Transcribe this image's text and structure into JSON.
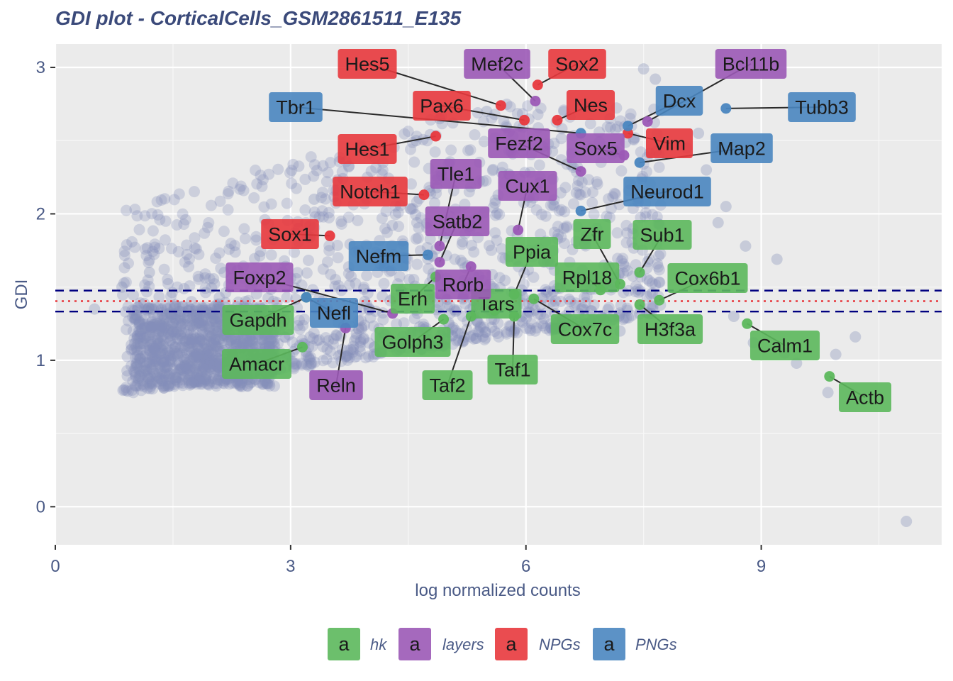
{
  "chart_data": {
    "type": "scatter",
    "title": "GDI plot - CorticalCells_GSM2861511_E135",
    "xlabel": "log normalized counts",
    "ylabel": "GDI",
    "xlim": [
      0,
      11.3
    ],
    "ylim": [
      -0.26,
      3.16
    ],
    "x_ticks": [
      0,
      3,
      6,
      9
    ],
    "y_ticks": [
      0,
      1,
      2,
      3
    ],
    "x_tick_labels": [
      "0",
      "3",
      "6",
      "9"
    ],
    "y_tick_labels": [
      "0",
      "1",
      "2",
      "3"
    ],
    "grid": true,
    "legend_position": "bottom",
    "reference_lines": [
      {
        "y": 1.476,
        "style": "dashed",
        "color": "#000080"
      },
      {
        "y": 1.404,
        "style": "dotted",
        "color": "#e8383d"
      },
      {
        "y": 1.333,
        "style": "dashed",
        "color": "#000080"
      }
    ],
    "background_points": [
      [
        10.85,
        -0.1
      ],
      [
        9.85,
        0.78
      ],
      [
        9.45,
        0.98
      ],
      [
        9.3,
        1.05
      ],
      [
        9.95,
        1.04
      ],
      [
        10.2,
        1.16
      ],
      [
        8.65,
        1.3
      ],
      [
        8.9,
        1.12
      ],
      [
        9.2,
        1.69
      ],
      [
        8.8,
        1.78
      ],
      [
        8.55,
        2.05
      ],
      [
        8.45,
        1.94
      ],
      [
        8.2,
        2.55
      ],
      [
        8.5,
        2.45
      ],
      [
        8.3,
        2.3
      ],
      [
        7.5,
        2.99
      ],
      [
        7.65,
        2.92
      ],
      [
        8.05,
        2.45
      ],
      [
        0.5,
        1.35
      ],
      [
        0.85,
        1.5
      ],
      [
        1.2,
        1.6
      ],
      [
        2.5,
        0.85
      ],
      [
        2.8,
        1.0
      ],
      [
        3.1,
        1.9
      ],
      [
        3.3,
        2.1
      ],
      [
        4.6,
        2.5
      ],
      [
        4.9,
        2.65
      ],
      [
        5.5,
        2.7
      ],
      [
        7.2,
        1.2
      ],
      [
        7.8,
        1.25
      ]
    ],
    "categories": [
      "hk",
      "layers",
      "NPGs",
      "PNGs"
    ],
    "colors": {
      "hk": "#5cb85c",
      "layers": "#9b59b6",
      "NPGs": "#e8383d",
      "PNGs": "#4a86c0",
      "background": "#8490b8"
    },
    "series": [
      {
        "name": "hk",
        "points": [
          {
            "label": "Actb",
            "x": 9.87,
            "y": 0.89
          },
          {
            "label": "Calm1",
            "x": 8.82,
            "y": 1.25
          },
          {
            "label": "Cox6b1",
            "x": 7.7,
            "y": 1.41
          },
          {
            "label": "H3f3a",
            "x": 7.45,
            "y": 1.38
          },
          {
            "label": "Sub1",
            "x": 7.45,
            "y": 1.6
          },
          {
            "label": "Zfr",
            "x": 7.2,
            "y": 1.52
          },
          {
            "label": "Rpl18",
            "x": 6.95,
            "y": 1.48
          },
          {
            "label": "Cox7c",
            "x": 6.1,
            "y": 1.42
          },
          {
            "label": "Ppia",
            "x": 5.85,
            "y": 1.45
          },
          {
            "label": "Tars",
            "x": 5.6,
            "y": 1.34
          },
          {
            "label": "Taf1",
            "x": 5.85,
            "y": 1.3
          },
          {
            "label": "Taf2",
            "x": 5.3,
            "y": 1.3
          },
          {
            "label": "Golph3",
            "x": 4.95,
            "y": 1.28
          },
          {
            "label": "Erh",
            "x": 4.85,
            "y": 1.57
          },
          {
            "label": "Gapdh",
            "x": 3.2,
            "y": 1.43
          },
          {
            "label": "Amacr",
            "x": 3.15,
            "y": 1.09
          }
        ]
      },
      {
        "name": "layers",
        "points": [
          {
            "label": "Mef2c",
            "x": 6.12,
            "y": 2.77
          },
          {
            "label": "Bcl11b",
            "x": 7.55,
            "y": 2.63
          },
          {
            "label": "Sox5",
            "x": 7.25,
            "y": 2.4
          },
          {
            "label": "Fezf2",
            "x": 6.7,
            "y": 2.29
          },
          {
            "label": "Tle1",
            "x": 4.9,
            "y": 1.78
          },
          {
            "label": "Cux1",
            "x": 5.9,
            "y": 1.89
          },
          {
            "label": "Satb2",
            "x": 4.9,
            "y": 1.67
          },
          {
            "label": "Rorb",
            "x": 5.3,
            "y": 1.64
          },
          {
            "label": "Foxp2",
            "x": 4.3,
            "y": 1.32
          },
          {
            "label": "Reln",
            "x": 3.7,
            "y": 1.22
          }
        ]
      },
      {
        "name": "NPGs",
        "points": [
          {
            "label": "Sox2",
            "x": 6.15,
            "y": 2.88
          },
          {
            "label": "Hes5",
            "x": 5.68,
            "y": 2.74
          },
          {
            "label": "Pax6",
            "x": 5.98,
            "y": 2.64
          },
          {
            "label": "Nes",
            "x": 6.4,
            "y": 2.64
          },
          {
            "label": "Vim",
            "x": 7.3,
            "y": 2.55
          },
          {
            "label": "Hes1",
            "x": 4.85,
            "y": 2.53
          },
          {
            "label": "Notch1",
            "x": 4.7,
            "y": 2.13
          },
          {
            "label": "Sox1",
            "x": 3.5,
            "y": 1.85
          }
        ]
      },
      {
        "name": "PNGs",
        "points": [
          {
            "label": "Tubb3",
            "x": 8.55,
            "y": 2.72
          },
          {
            "label": "Dcx",
            "x": 7.3,
            "y": 2.6
          },
          {
            "label": "Tbr1",
            "x": 6.7,
            "y": 2.55
          },
          {
            "label": "Map2",
            "x": 7.45,
            "y": 2.35
          },
          {
            "label": "Neurod1",
            "x": 6.7,
            "y": 2.02
          },
          {
            "label": "Nefm",
            "x": 4.75,
            "y": 1.72
          },
          {
            "label": "Nefl",
            "x": 3.2,
            "y": 1.43
          }
        ]
      }
    ],
    "legend": {
      "key_glyph": "a",
      "entries": [
        "hk",
        "layers",
        "NPGs",
        "PNGs"
      ]
    }
  }
}
